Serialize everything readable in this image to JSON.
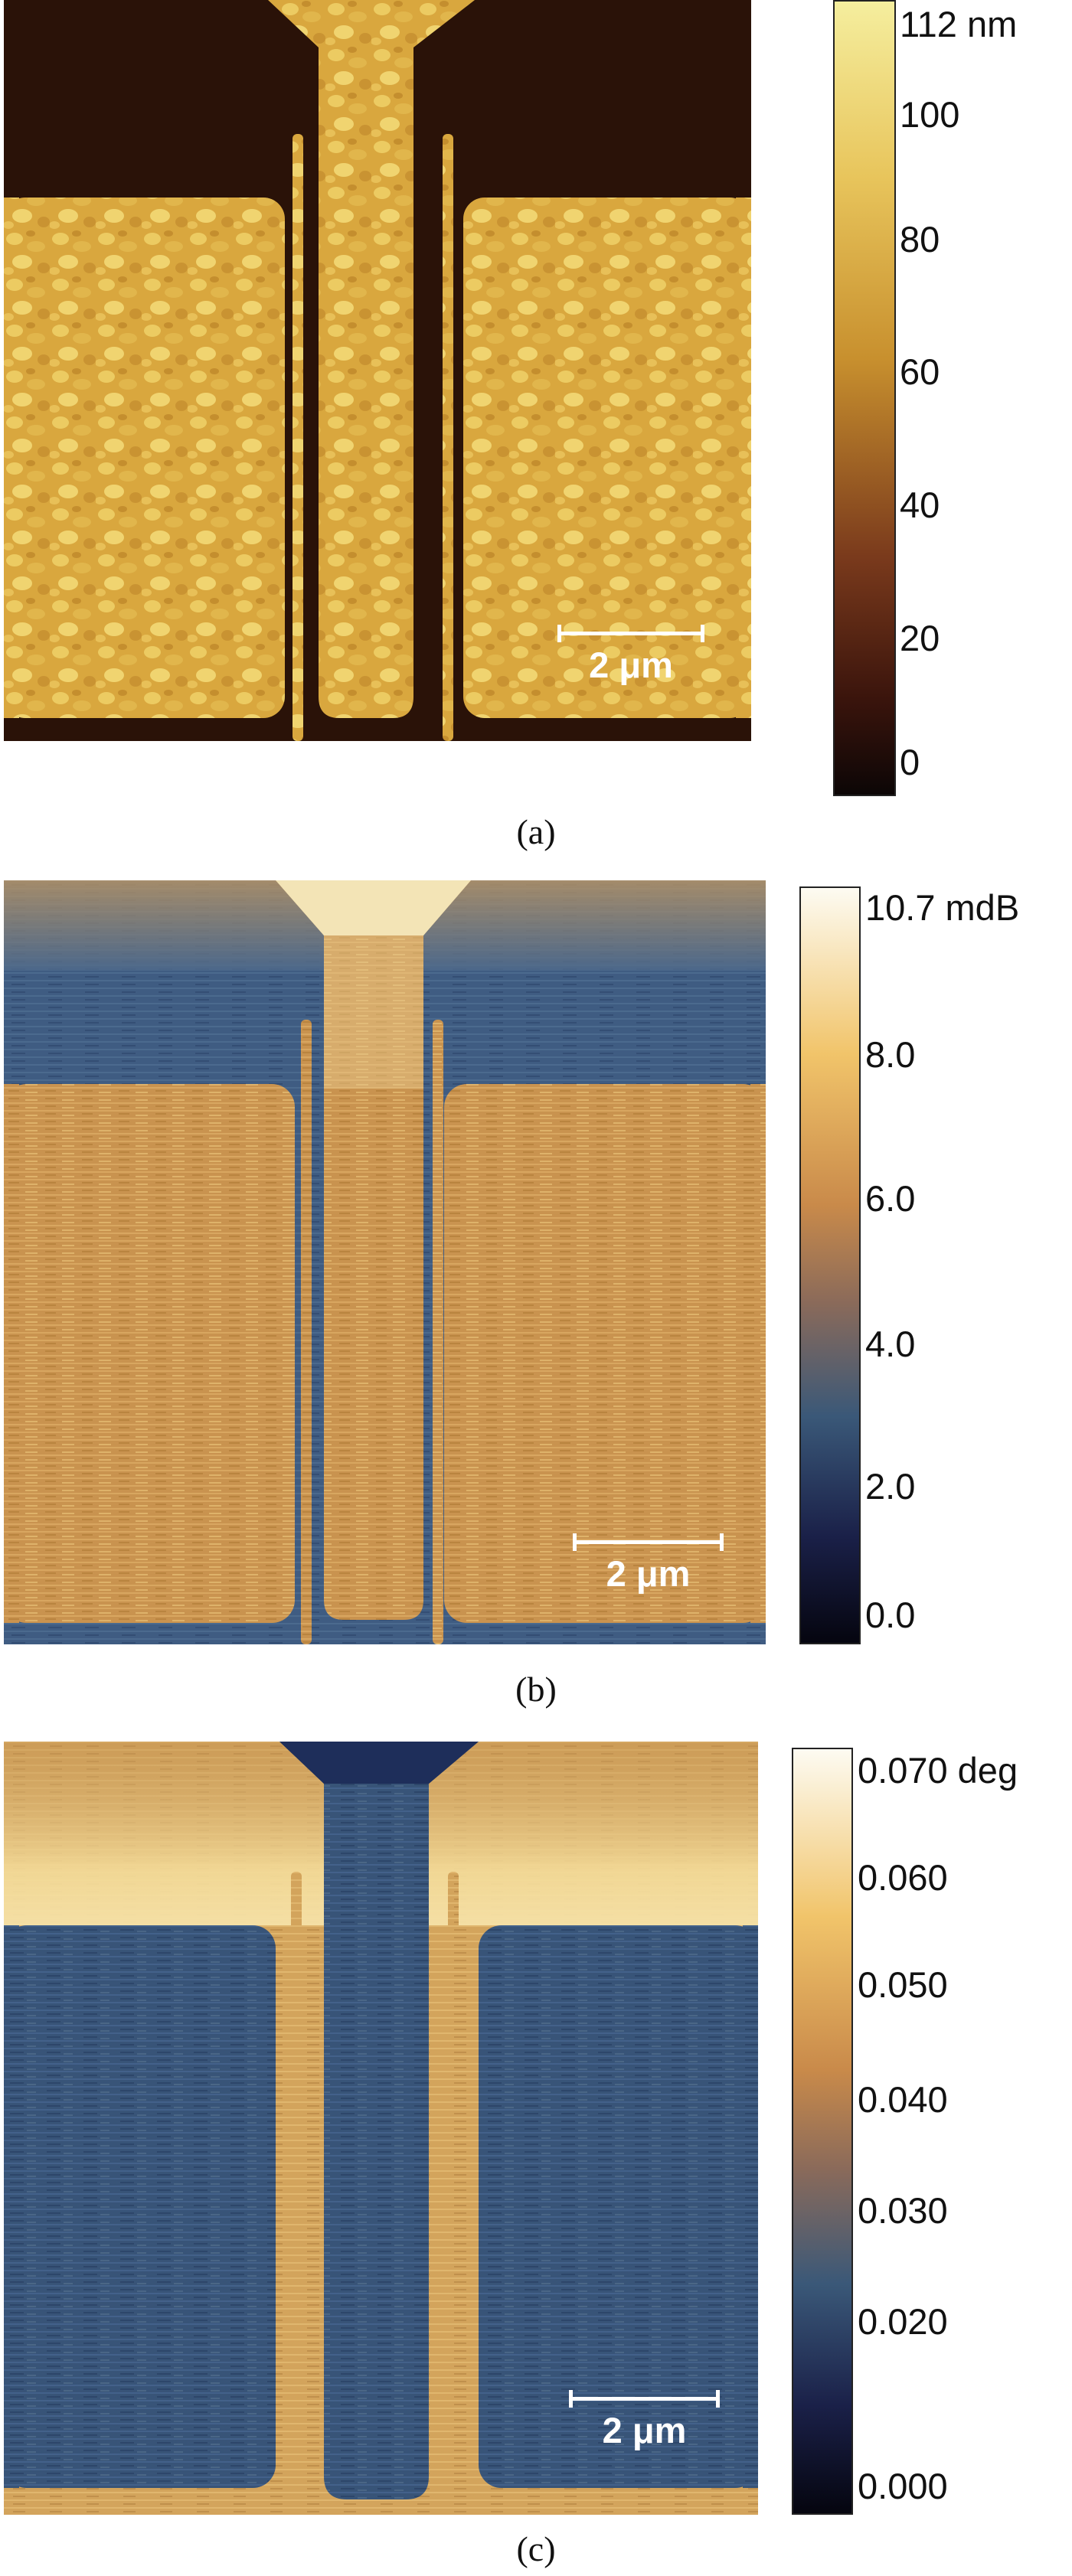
{
  "panels": [
    {
      "id": "a",
      "caption": "(a)",
      "scale_label": "2 μm",
      "colorbar": {
        "top_label": "112 nm",
        "ticks": [
          "100",
          "80",
          "60",
          "40",
          "20",
          "0"
        ],
        "colors": [
          "#f4ec9c",
          "#e8c25a",
          "#c8902e",
          "#8a4a20",
          "#4a1a12",
          "#120808"
        ]
      },
      "colors": {
        "background": "#2a1208",
        "pads": "#d6a43c",
        "grain": "#efd06a"
      }
    },
    {
      "id": "b",
      "caption": "(b)",
      "scale_label": "2 μm",
      "colorbar": {
        "top_label": "10.7 mdB",
        "ticks": [
          "8.0",
          "6.0",
          "4.0",
          "2.0",
          "0.0"
        ],
        "colors": [
          "#fdfbf2",
          "#f1c46a",
          "#c98a4a",
          "#8a6a5a",
          "#3a5878",
          "#1a2048",
          "#05050f"
        ]
      },
      "colors": {
        "background": "#3c5a80",
        "pads": "#c9954f",
        "bright": "#f6e9c0"
      }
    },
    {
      "id": "c",
      "caption": "(c)",
      "scale_label": "2 μm",
      "colorbar": {
        "top_label": "0.070 deg",
        "ticks": [
          "0.060",
          "0.050",
          "0.040",
          "0.030",
          "0.020",
          "0.000"
        ],
        "colors": [
          "#fdfbf2",
          "#f1c46a",
          "#c98a4a",
          "#8a6a5a",
          "#3a5878",
          "#1a2048",
          "#05050f"
        ]
      },
      "colors": {
        "background": "#d7a85e",
        "pads": "#355276",
        "bright": "#f5e0a4"
      }
    }
  ]
}
